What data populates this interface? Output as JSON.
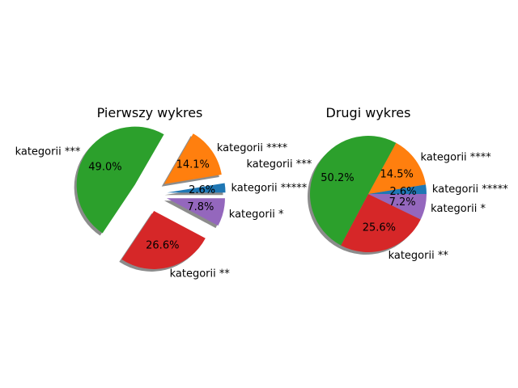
{
  "chart_data": [
    {
      "type": "pie",
      "title": "Pierwszy wykres",
      "categories": [
        "kategorii *****",
        "kategorii ****",
        "kategorii ***",
        "kategorii **",
        "kategorii *"
      ],
      "values": [
        2.6,
        14.1,
        49.0,
        26.6,
        7.8
      ],
      "value_labels": [
        "2.6%",
        "14.1%",
        "49.0%",
        "26.6%",
        "7.8%"
      ],
      "colors": [
        "#1f77b4",
        "#ff7f0e",
        "#2ca02c",
        "#d62728",
        "#9467bd"
      ],
      "exploded": true,
      "shadow": true
    },
    {
      "type": "pie",
      "title": "Drugi wykres",
      "categories": [
        "kategorii *****",
        "kategorii ****",
        "kategorii ***",
        "kategorii **",
        "kategorii *"
      ],
      "values": [
        2.6,
        14.5,
        50.2,
        25.6,
        7.2
      ],
      "value_labels": [
        "2.6%",
        "14.5%",
        "50.2%",
        "25.6%",
        "7.2%"
      ],
      "colors": [
        "#1f77b4",
        "#ff7f0e",
        "#2ca02c",
        "#d62728",
        "#9467bd"
      ],
      "exploded": false,
      "shadow": true
    }
  ]
}
